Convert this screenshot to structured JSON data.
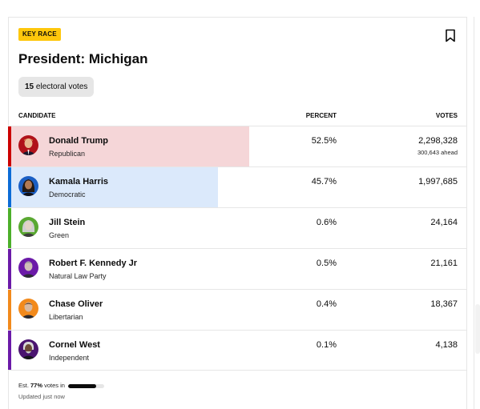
{
  "race": {
    "tag": "KEY RACE",
    "title": "President: Michigan",
    "electoral_votes_count": "15",
    "electoral_votes_label": "electoral votes"
  },
  "table": {
    "headers": {
      "candidate": "CANDIDATE",
      "percent": "PERCENT",
      "votes": "VOTES"
    },
    "candidates": [
      {
        "name": "Donald Trump",
        "party": "Republican",
        "percent": "52.5%",
        "votes": "2,298,328",
        "ahead": "300,643 ahead",
        "party_color": "#cc0000",
        "bar_color": "#f5d6d8",
        "bar_fraction": 0.525,
        "is_leader": true
      },
      {
        "name": "Kamala Harris",
        "party": "Democratic",
        "percent": "45.7%",
        "votes": "1,997,685",
        "ahead": "",
        "party_color": "#0c6cd6",
        "bar_color": "#dbe9fb",
        "bar_fraction": 0.457,
        "is_leader": false
      },
      {
        "name": "Jill Stein",
        "party": "Green",
        "percent": "0.6%",
        "votes": "24,164",
        "ahead": "",
        "party_color": "#4caf2a",
        "bar_color": "#e6f4df",
        "bar_fraction": 0.006,
        "is_leader": false
      },
      {
        "name": "Robert F. Kennedy Jr",
        "party": "Natural Law Party",
        "percent": "0.5%",
        "votes": "21,161",
        "ahead": "",
        "party_color": "#6b1aa8",
        "bar_color": "#eee2f6",
        "bar_fraction": 0.005,
        "is_leader": false
      },
      {
        "name": "Chase Oliver",
        "party": "Libertarian",
        "percent": "0.4%",
        "votes": "18,367",
        "ahead": "",
        "party_color": "#f28a1c",
        "bar_color": "#fdeedd",
        "bar_fraction": 0.004,
        "is_leader": false
      },
      {
        "name": "Cornel West",
        "party": "Independent",
        "percent": "0.1%",
        "votes": "4,138",
        "ahead": "",
        "party_color": "#6b1aa8",
        "bar_color": "#eee2f6",
        "bar_fraction": 0.001,
        "is_leader": false
      }
    ]
  },
  "footer": {
    "est_prefix": "Est.",
    "est_percent": "77%",
    "est_suffix": "votes in",
    "progress_fraction": 0.77,
    "updated": "Updated just now"
  },
  "icons": {
    "bookmark": "bookmark-icon"
  }
}
